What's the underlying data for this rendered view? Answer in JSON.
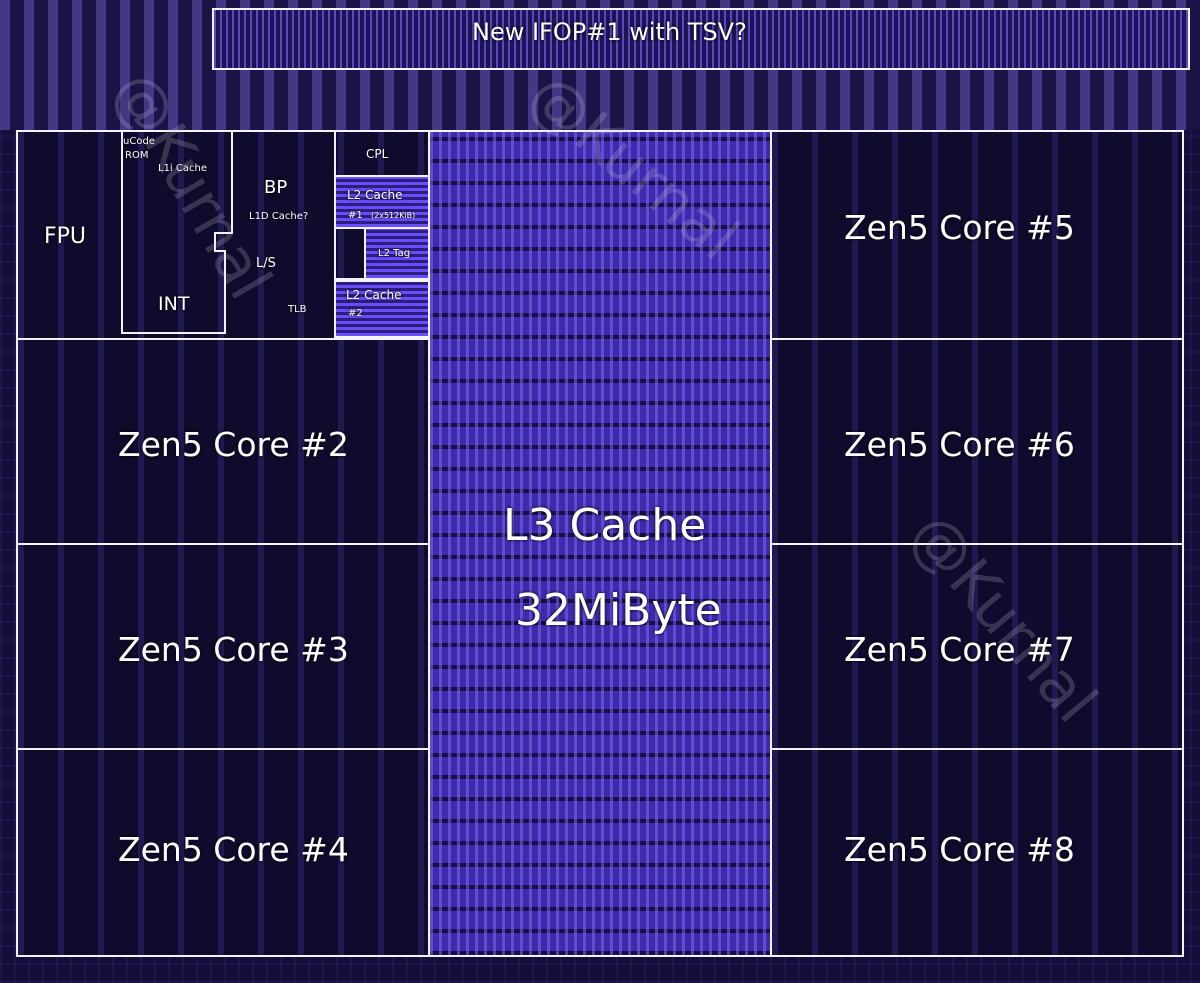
{
  "title": "New IFOP#1 with TSV?",
  "l3": {
    "line1": "L3 Cache",
    "line2": "32MiByte"
  },
  "core1": {
    "fpu": "FPU",
    "ucode": "uCode",
    "rom": "ROM",
    "l1i": "L1i Cache",
    "bp": "BP",
    "l1d": "L1D Cache?",
    "ls": "L/S",
    "int": "INT",
    "tlb": "TLB",
    "cpl": "CPL",
    "l2cache1": "L2 Cache",
    "l2num1": "#1",
    "l2size": "(2x512KiB)",
    "l2tag": "L2 Tag",
    "l2cache2": "L2 Cache",
    "l2num2": "#2"
  },
  "cores": [
    "Zen5 Core #2",
    "Zen5 Core #3",
    "Zen5 Core #4",
    "Zen5 Core #5",
    "Zen5 Core #6",
    "Zen5 Core #7",
    "Zen5 Core #8"
  ],
  "watermark": "@Kurnal",
  "colors": {
    "outline": "#f4f2ff",
    "die": "#140f38",
    "sram": "#6a4cff"
  }
}
